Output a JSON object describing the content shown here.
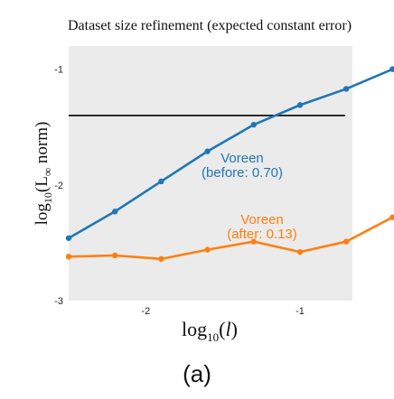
{
  "chart_data": {
    "type": "line",
    "title": "Dataset size refinement (expected constant error)",
    "xlabel": "log10(l)",
    "ylabel": "log10(L∞ norm)",
    "xlim": [
      -2.5,
      -0.66
    ],
    "ylim": [
      -3.0,
      -0.8
    ],
    "xticks": [
      {
        "value": -2,
        "label": "-2"
      },
      {
        "value": -1,
        "label": "-1"
      }
    ],
    "yticks": [
      {
        "value": -1,
        "label": "-1"
      },
      {
        "value": -2,
        "label": "-2"
      },
      {
        "value": -3,
        "label": "-3"
      }
    ],
    "reference_line": {
      "y": -1.4,
      "color": "#000000"
    },
    "series": [
      {
        "name": "Voreen (before: 0.70)",
        "label_lines": [
          "Voreen",
          "(before: 0.70)"
        ],
        "color": "#1f77b4",
        "x": [
          -2.5,
          -2.2,
          -1.9,
          -1.6,
          -1.3,
          -1.0,
          -0.7,
          -0.4
        ],
        "y": [
          -2.46,
          -2.23,
          -1.97,
          -1.71,
          -1.48,
          -1.31,
          -1.17,
          -1.0
        ]
      },
      {
        "name": "Voreen (after: 0.13)",
        "label_lines": [
          "Voreen",
          "(after: 0.13)"
        ],
        "color": "#ff7f0e",
        "x": [
          -2.5,
          -2.2,
          -1.9,
          -1.6,
          -1.3,
          -1.0,
          -0.7,
          -0.4
        ],
        "y": [
          -2.62,
          -2.61,
          -2.64,
          -2.56,
          -2.49,
          -2.58,
          -2.49,
          -2.28
        ]
      }
    ],
    "background": "#ebebeb",
    "grid": false,
    "panel_label": "(a)"
  }
}
